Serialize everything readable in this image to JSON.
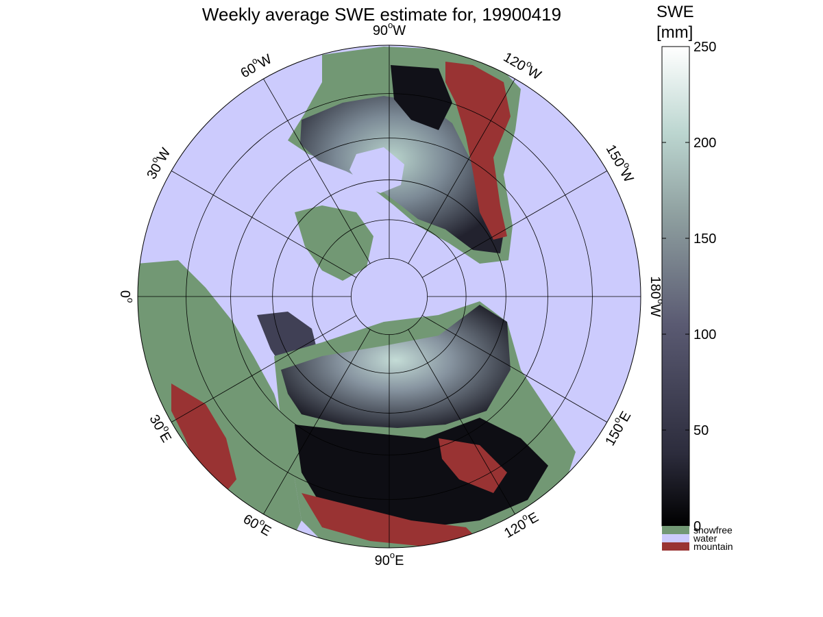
{
  "title": "Weekly average SWE estimate for, 19900419",
  "colorbar": {
    "label_line1": "SWE",
    "label_line2": "[mm]",
    "min": 0,
    "max": 250,
    "ticks": [
      0,
      50,
      100,
      150,
      200,
      250
    ],
    "tick_labels": [
      "0",
      "50",
      "100",
      "150",
      "200",
      "250"
    ],
    "colors": {
      "low": "#000000",
      "mid1": "#2c2c3c",
      "mid2": "#5a5a72",
      "mid3": "#8fa0a0",
      "high1": "#bcd6d0",
      "high": "#ffffff"
    }
  },
  "categories": [
    {
      "label": "snowfree",
      "color": "#729874"
    },
    {
      "label": "water",
      "color": "#cccbfd"
    },
    {
      "label": "mountain",
      "color": "#993333"
    }
  ],
  "map": {
    "projection": "north-polar-stereographic",
    "lat_circles_deg": [
      80,
      70,
      60,
      50,
      40,
      30
    ],
    "meridian_step_deg": 30,
    "meridian_labels": [
      {
        "lon_label": "90",
        "hemi": "W",
        "screen_angle_deg": -90
      },
      {
        "lon_label": "120",
        "hemi": "W",
        "screen_angle_deg": -60
      },
      {
        "lon_label": "150",
        "hemi": "W",
        "screen_angle_deg": -30
      },
      {
        "lon_label": "180",
        "hemi": "W",
        "screen_angle_deg": 0
      },
      {
        "lon_label": "150",
        "hemi": "E",
        "screen_angle_deg": 30
      },
      {
        "lon_label": "120",
        "hemi": "E",
        "screen_angle_deg": 60
      },
      {
        "lon_label": "90",
        "hemi": "E",
        "screen_angle_deg": 90
      },
      {
        "lon_label": "60",
        "hemi": "E",
        "screen_angle_deg": 120
      },
      {
        "lon_label": "30",
        "hemi": "E",
        "screen_angle_deg": 150
      },
      {
        "lon_label": "0",
        "hemi": "",
        "screen_angle_deg": 180
      },
      {
        "lon_label": "30",
        "hemi": "W",
        "screen_angle_deg": -150
      },
      {
        "lon_label": "60",
        "hemi": "W",
        "screen_angle_deg": -120
      }
    ],
    "background_color": "#cccbfd",
    "snow_regions": [
      {
        "name": "north-america-snow",
        "peak_swe_mm": 200
      },
      {
        "name": "eurasia-snow",
        "peak_swe_mm": 215
      }
    ]
  }
}
